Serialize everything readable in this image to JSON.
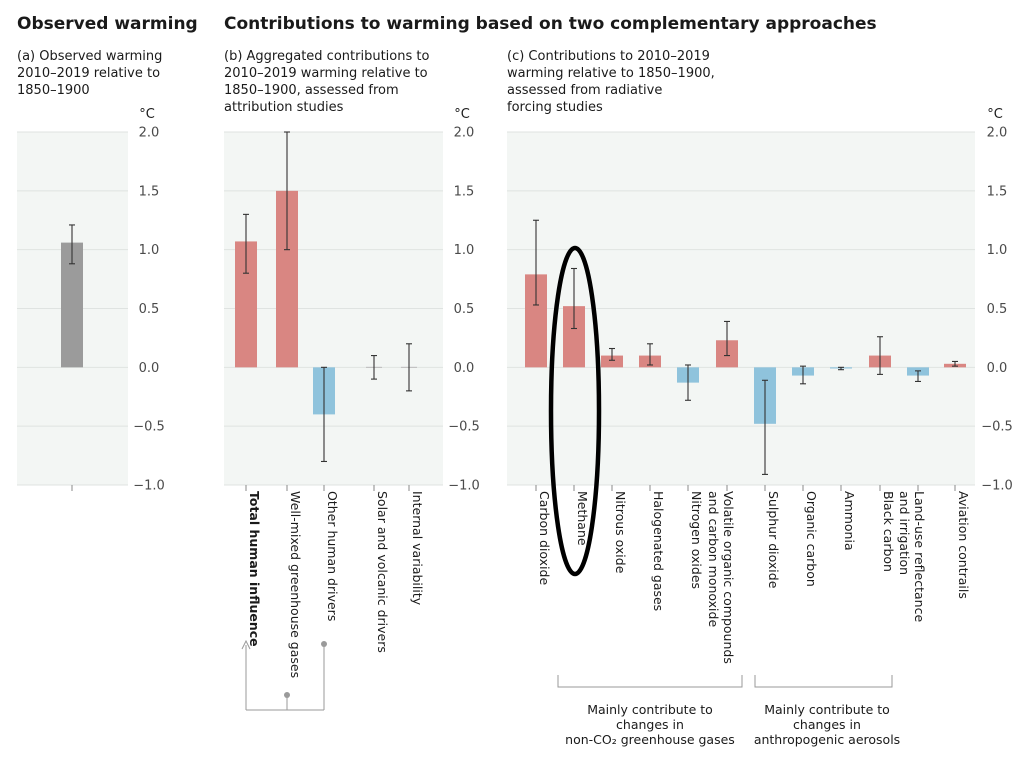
{
  "headers": {
    "observed": "Observed warming",
    "contrib": "Contributions to warming based on two complementary approaches"
  },
  "subtitles": {
    "a": "(a) Observed warming\n2010–2019 relative to\n1850–1900",
    "b": "(b) Aggregated contributions to\n2010–2019 warming relative to\n1850–1900, assessed from\nattribution studies",
    "c": "(c) Contributions to 2010–2019\nwarming relative to 1850–1900,\nassessed from radiative\nforcing studies"
  },
  "unit": "°C",
  "colors": {
    "observed": "#9b9b9b",
    "warming": "#d98682",
    "cooling": "#8fc3dc",
    "panel": "#f3f6f4",
    "highlight": "#000000"
  },
  "chart_data": [
    {
      "type": "bar",
      "id": "a",
      "ylim": [
        -1.0,
        2.0
      ],
      "yticks": [
        2.0,
        1.5,
        1.0,
        0.5,
        0.0,
        -0.5,
        -1.0
      ],
      "ytick_labels": [
        "2.0",
        "1.5",
        "1.0",
        "0.5",
        "0.0",
        "−0.5",
        "−1.0"
      ],
      "categories": [
        ""
      ],
      "values": [
        1.06
      ],
      "low": [
        0.88
      ],
      "high": [
        1.21
      ],
      "colors": [
        "observed"
      ]
    },
    {
      "type": "bar",
      "id": "b",
      "ylim": [
        -1.0,
        2.0
      ],
      "yticks": [
        2.0,
        1.5,
        1.0,
        0.5,
        0.0,
        -0.5,
        -1.0
      ],
      "ytick_labels": [
        "2.0",
        "1.5",
        "1.0",
        "0.5",
        "0.0",
        "−0.5",
        "−1.0"
      ],
      "categories": [
        "Total human influence",
        "Well-mixed greenhouse gases",
        "Other human drivers",
        "Solar and volcanic drivers",
        "Internal variability"
      ],
      "values": [
        1.07,
        1.5,
        -0.4,
        0.0,
        0.0
      ],
      "low": [
        0.8,
        1.0,
        -0.8,
        -0.1,
        -0.2
      ],
      "high": [
        1.3,
        2.0,
        0.0,
        0.1,
        0.2
      ],
      "colors": [
        "warming",
        "warming",
        "cooling",
        "none",
        "none"
      ],
      "bold": [
        true,
        false,
        false,
        false,
        false
      ]
    },
    {
      "type": "bar",
      "id": "c",
      "ylim": [
        -1.0,
        2.0
      ],
      "yticks": [
        2.0,
        1.5,
        1.0,
        0.5,
        0.0,
        -0.5,
        -1.0
      ],
      "ytick_labels": [
        "2.0",
        "1.5",
        "1.0",
        "0.5",
        "0.0",
        "−0.5",
        "−1.0"
      ],
      "categories": [
        "Carbon dioxide",
        "Methane",
        "Nitrous oxide",
        "Halogenated gases",
        "Nitrogen oxides",
        "Volatile organic compounds|and carbon monoxide",
        "Sulphur dioxide",
        "Organic carbon",
        "Ammonia",
        "Black carbon",
        "Land-use reflectance|and irrigation",
        "Aviation contrails"
      ],
      "values": [
        0.79,
        0.52,
        0.1,
        0.1,
        -0.13,
        0.23,
        -0.48,
        -0.07,
        -0.01,
        0.1,
        -0.07,
        0.03
      ],
      "low": [
        0.53,
        0.33,
        0.06,
        0.02,
        -0.28,
        0.1,
        -0.91,
        -0.14,
        -0.02,
        -0.06,
        -0.12,
        0.01
      ],
      "high": [
        1.25,
        0.84,
        0.16,
        0.2,
        0.02,
        0.39,
        -0.11,
        0.01,
        0.0,
        0.26,
        -0.03,
        0.05
      ],
      "colors": [
        "warming",
        "warming",
        "warming",
        "warming",
        "cooling",
        "warming",
        "cooling",
        "cooling",
        "cooling",
        "warming",
        "cooling",
        "warming"
      ],
      "highlighted": "Methane"
    }
  ],
  "brackets": {
    "ghg": "Mainly contribute to\nchanges in\nnon-CO₂ greenhouse gases",
    "aerosols": "Mainly contribute to\nchanges in\nanthropogenic aerosols"
  }
}
